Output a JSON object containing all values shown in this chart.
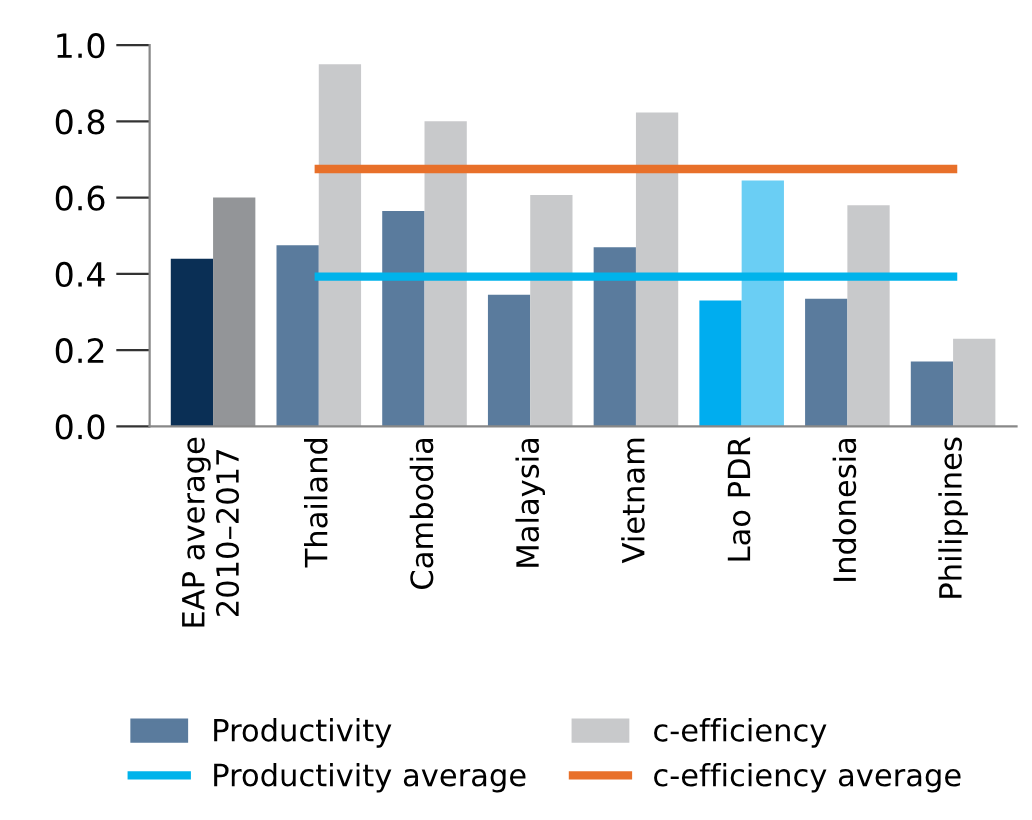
{
  "chart_data": {
    "type": "bar",
    "categories": [
      "EAP average\n2010–2017",
      "Thailand",
      "Cambodia",
      "Malaysia",
      "Vietnam",
      "Lao PDR",
      "Indonesia",
      "Philippines"
    ],
    "series": [
      {
        "name": "Productivity",
        "color": "#5a7b9d",
        "colors": [
          "#0a2f55",
          "#5a7b9d",
          "#5a7b9d",
          "#5a7b9d",
          "#5a7b9d",
          "#00adef",
          "#5a7b9d",
          "#5a7b9d"
        ],
        "values": [
          0.44,
          0.475,
          0.565,
          0.345,
          0.47,
          0.33,
          0.335,
          0.17
        ]
      },
      {
        "name": "c-efficiency",
        "color": "#c8c9cb",
        "colors": [
          "#939598",
          "#c8c9cb",
          "#c8c9cb",
          "#c8c9cb",
          "#c8c9cb",
          "#6acef4",
          "#c8c9cb",
          "#c8c9cb"
        ],
        "values": [
          0.6,
          0.95,
          0.8,
          0.607,
          0.823,
          0.645,
          0.58,
          0.23
        ]
      },
      {
        "name": "Productivity average",
        "type": "line",
        "color": "#00b3eb",
        "values": [
          null,
          0.393,
          0.393,
          0.393,
          0.393,
          0.393,
          0.393,
          0.393
        ]
      },
      {
        "name": "c-efficiency average",
        "type": "line",
        "color": "#e8702a",
        "values": [
          null,
          0.675,
          0.675,
          0.675,
          0.675,
          0.675,
          0.675,
          0.675
        ]
      }
    ],
    "ylim": [
      0,
      1.0
    ],
    "yticks": [
      {
        "value": 0,
        "label": "0.0"
      },
      0.2,
      0.4,
      0.6,
      0.8,
      {
        "value": 1.0,
        "label": "1.0"
      }
    ],
    "grid": false,
    "legend": "bottom"
  }
}
